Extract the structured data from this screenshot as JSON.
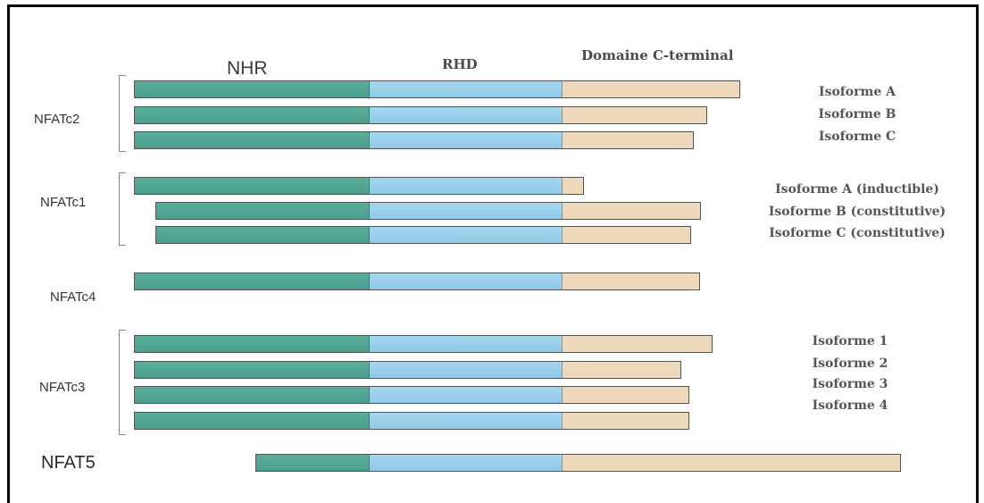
{
  "headers": {
    "nhr": "NHR",
    "rhd": "RHD",
    "cterminal": "Domaine C-terminal"
  },
  "legend_colors": {
    "nhr": "#4fa391",
    "rhd": "#9ccfeb",
    "cterminal": "#eed9bd"
  },
  "groups": [
    {
      "name": "NFATc2",
      "isoforms": [
        "Isoforme A",
        "Isoforme B",
        "Isoforme C"
      ]
    },
    {
      "name": "NFATc1",
      "isoforms": [
        "Isoforme A (inductible)",
        "Isoforme B (constitutive)",
        "Isoforme C (constitutive)"
      ]
    },
    {
      "name": "NFATc4",
      "isoforms": []
    },
    {
      "name": "NFATc3",
      "isoforms": [
        "Isoforme 1",
        "Isoforme 2",
        "Isoforme 3",
        "Isoforme 4"
      ]
    },
    {
      "name": "NFAT5",
      "isoforms": []
    }
  ]
}
